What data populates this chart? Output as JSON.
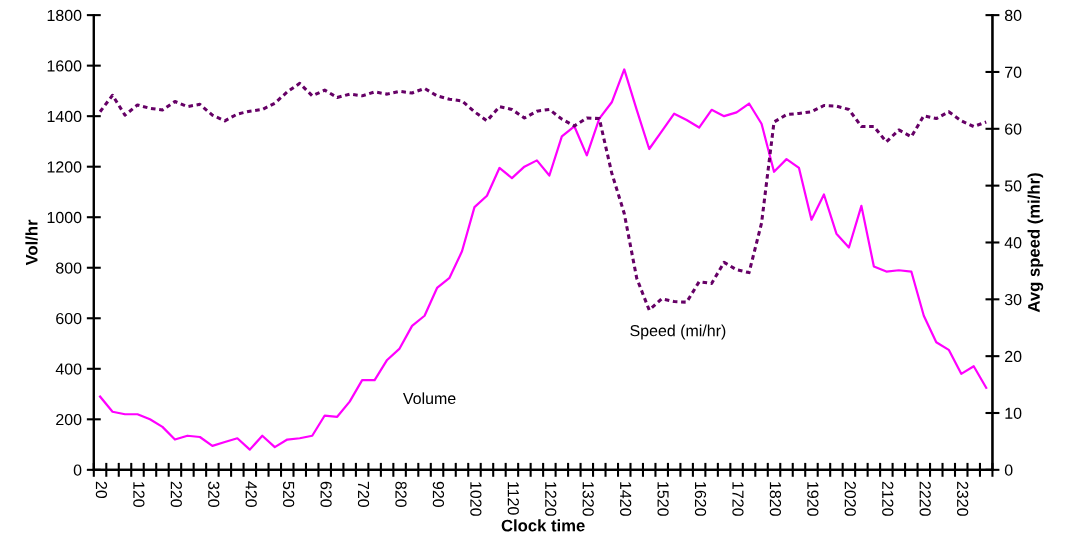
{
  "chart_data": {
    "type": "line",
    "xlabel": "Clock time",
    "ylabel": "Vol/hr",
    "y2label": "Avg speed (mi/hr)",
    "categories": [
      "20",
      null,
      null,
      "120",
      null,
      null,
      "220",
      null,
      null,
      "320",
      null,
      null,
      "420",
      null,
      null,
      "520",
      null,
      null,
      "620",
      null,
      null,
      "720",
      null,
      null,
      "820",
      null,
      null,
      "920",
      null,
      null,
      "1020",
      null,
      null,
      "1120",
      null,
      null,
      "1220",
      null,
      null,
      "1320",
      null,
      null,
      "1420",
      null,
      null,
      "1520",
      null,
      null,
      "1620",
      null,
      null,
      "1720",
      null,
      null,
      "1820",
      null,
      null,
      "1920",
      null,
      null,
      "2020",
      null,
      null,
      "2120",
      null,
      null,
      "2220",
      null,
      null,
      "2320",
      null,
      null
    ],
    "series": [
      {
        "name": "Volume",
        "color": "#ff00ff",
        "line_style": "solid",
        "values": [
          290,
          230,
          220,
          220,
          200,
          170,
          120,
          135,
          130,
          95,
          110,
          125,
          80,
          135,
          90,
          120,
          125,
          135,
          215,
          210,
          270,
          355,
          355,
          435,
          480,
          570,
          610,
          720,
          760,
          865,
          1040,
          1085,
          1195,
          1155,
          1200,
          1225,
          1165,
          1320,
          1360,
          1245,
          1390,
          1455,
          1585,
          1425,
          1270,
          1340,
          1410,
          1385,
          1355,
          1425,
          1400,
          1415,
          1450,
          1370,
          1180,
          1230,
          1195,
          990,
          1090,
          935,
          880,
          1045,
          805,
          785,
          790,
          785,
          610,
          505,
          475,
          380,
          410,
          325
        ]
      },
      {
        "name": "Speed (mi/hr)",
        "color": "#660066",
        "line_style": "dotted",
        "axis": "y2",
        "values": [
          63.0,
          65.9,
          62.4,
          64.2,
          63.6,
          63.3,
          64.8,
          63.9,
          64.3,
          62.4,
          61.4,
          62.6,
          63.1,
          63.4,
          64.5,
          66.5,
          68.0,
          65.8,
          66.8,
          65.5,
          66.1,
          65.8,
          66.5,
          66.1,
          66.6,
          66.3,
          67.1,
          65.8,
          65.2,
          64.9,
          63.0,
          61.4,
          63.9,
          63.4,
          61.9,
          63.1,
          63.4,
          61.7,
          60.5,
          61.9,
          61.8,
          52.2,
          45.1,
          33.7,
          28.1,
          30.1,
          29.6,
          29.5,
          33.1,
          32.8,
          36.5,
          35.2,
          34.7,
          43.4,
          61.2,
          62.5,
          62.7,
          63.0,
          64.1,
          64.0,
          63.4,
          60.4,
          60.4,
          57.7,
          59.8,
          58.6,
          62.3,
          61.8,
          63.0,
          61.4,
          60.4,
          61.2
        ]
      }
    ],
    "ylim": [
      0,
      1800
    ],
    "yticks": [
      0,
      200,
      400,
      600,
      800,
      1000,
      1200,
      1400,
      1600,
      1800
    ],
    "y2lim": [
      0,
      80
    ],
    "y2ticks": [
      0,
      10,
      20,
      30,
      40,
      50,
      60,
      70,
      80
    ],
    "grid": false,
    "legend": false,
    "marker": "none"
  }
}
